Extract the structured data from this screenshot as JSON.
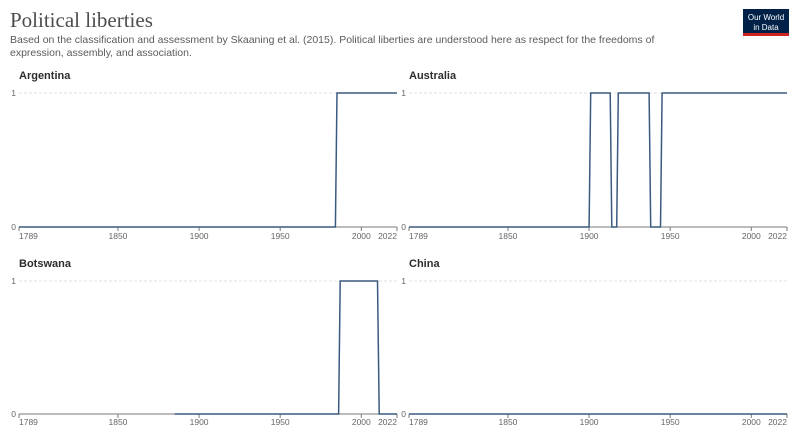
{
  "header": {
    "title": "Political liberties",
    "subtitle": "Based on the classification and assessment by Skaaning et al. (2015). Political liberties are understood here as respect for the freedoms of expression, assembly, and association.",
    "logo_line1": "Our World",
    "logo_line2": "in Data"
  },
  "colors": {
    "line": "#3b5a80",
    "grid": "#e2e2e2",
    "axis": "#7a7a7a",
    "logo_bg": "#002147",
    "logo_accent": "#ce261e"
  },
  "chart_data": [
    {
      "type": "line",
      "title": "Argentina",
      "xlim": [
        1789,
        2022
      ],
      "ylim": [
        0,
        1
      ],
      "x_ticks": [
        "1789",
        "1850",
        "1900",
        "1950",
        "2000",
        "2022"
      ],
      "y_ticks": [
        "0",
        "1"
      ],
      "series": [
        {
          "x": [
            1789,
            1984,
            1985,
            2022
          ],
          "y": [
            0,
            0,
            1,
            1
          ]
        }
      ]
    },
    {
      "type": "line",
      "title": "Australia",
      "xlim": [
        1789,
        2022
      ],
      "ylim": [
        0,
        1
      ],
      "x_ticks": [
        "1789",
        "1850",
        "1900",
        "1950",
        "2000",
        "2022"
      ],
      "y_ticks": [
        "0",
        "1"
      ],
      "series": [
        {
          "x": [
            1789,
            1900,
            1901,
            1913,
            1914,
            1917,
            1918,
            1937,
            1938,
            1944,
            1945,
            2022
          ],
          "y": [
            0,
            0,
            1,
            1,
            0,
            0,
            1,
            1,
            0,
            0,
            1,
            1
          ]
        }
      ]
    },
    {
      "type": "line",
      "title": "Botswana",
      "xlim": [
        1789,
        2022
      ],
      "ylim": [
        0,
        1
      ],
      "x_ticks": [
        "1789",
        "1850",
        "1900",
        "1950",
        "2000",
        "2022"
      ],
      "y_ticks": [
        "0",
        "1"
      ],
      "series": [
        {
          "x": [
            1885,
            1986,
            1987,
            2010,
            2011,
            2022
          ],
          "y": [
            0,
            0,
            1,
            1,
            0,
            0
          ]
        }
      ]
    },
    {
      "type": "line",
      "title": "China",
      "xlim": [
        1789,
        2022
      ],
      "ylim": [
        0,
        1
      ],
      "x_ticks": [
        "1789",
        "1850",
        "1900",
        "1950",
        "2000",
        "2022"
      ],
      "y_ticks": [
        "0",
        "1"
      ],
      "series": [
        {
          "x": [
            1789,
            2022
          ],
          "y": [
            0,
            0
          ]
        }
      ]
    }
  ]
}
